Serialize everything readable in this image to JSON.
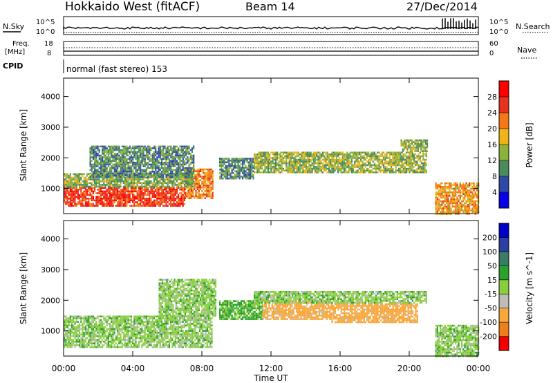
{
  "header": {
    "title": "Hokkaido West (fitACF)",
    "beam": "Beam 14",
    "date": "27/Dec/2014"
  },
  "strips": {
    "nsky_label": "N.Sky",
    "nsky_ticks": [
      "10^5",
      "10^0"
    ],
    "nsearch_label": "N.Search",
    "nsearch_ticks": [
      "10^5",
      "10^0"
    ],
    "freq_label_1": "Freq.",
    "freq_label_2": "[MHz]",
    "freq_ticks": [
      "18",
      "8"
    ],
    "nave_label": "Nave",
    "nave_ticks": [
      "60",
      "0"
    ],
    "cpid_label": "CPID",
    "cpid_text": "normal (fast stereo) 153"
  },
  "xaxis": {
    "label": "Time UT",
    "ticks": [
      "00:00",
      "04:00",
      "08:00",
      "12:00",
      "16:00",
      "20:00",
      "00:00"
    ]
  },
  "colors": {
    "power": [
      "#0a00e6",
      "#3049a8",
      "#4a8a5c",
      "#8cb23c",
      "#f0b419",
      "#f57814",
      "#e6321e",
      "#ff0000"
    ],
    "velocity": [
      "#f00000",
      "#ee7f1b",
      "#f9a73a",
      "#bdbdb5",
      "#89ce3d",
      "#2ca02c",
      "#3a7d62",
      "#2a3fa0",
      "#0000c8"
    ]
  },
  "chart_data": [
    {
      "type": "heatmap",
      "name": "power-panel",
      "xlabel": "",
      "ylabel": "Slant Range [km]",
      "ylim": [
        180,
        4600
      ],
      "yticks": [
        1000,
        2000,
        3000,
        4000
      ],
      "xlim_hours": [
        0,
        24
      ],
      "colorbar": {
        "label": "Power [dB]",
        "ticks": [
          4,
          8,
          12,
          16,
          20,
          24,
          28
        ],
        "range": [
          0,
          32
        ]
      },
      "regions": [
        {
          "t0": 0,
          "t1": 7.0,
          "r0": 450,
          "r1": 1050,
          "level": 26
        },
        {
          "t0": 7.0,
          "t1": 8.6,
          "r0": 700,
          "r1": 1650,
          "level": 22
        },
        {
          "t0": 0,
          "t1": 7.5,
          "r0": 1050,
          "r1": 1500,
          "level": 13
        },
        {
          "t0": 1.5,
          "t1": 7.5,
          "r0": 1400,
          "r1": 2400,
          "level": 10
        },
        {
          "t0": 9,
          "t1": 11,
          "r0": 1300,
          "r1": 2000,
          "level": 10
        },
        {
          "t0": 11,
          "t1": 21,
          "r0": 1500,
          "r1": 2200,
          "level": 14
        },
        {
          "t0": 19.5,
          "t1": 21,
          "r0": 2200,
          "r1": 2600,
          "level": 13
        },
        {
          "t0": 21.5,
          "t1": 24,
          "r0": 200,
          "r1": 1200,
          "level": 20
        }
      ]
    },
    {
      "type": "heatmap",
      "name": "velocity-panel",
      "xlabel": "Time UT",
      "ylabel": "Slant Range [km]",
      "ylim": [
        180,
        4600
      ],
      "yticks": [
        1000,
        2000,
        3000,
        4000
      ],
      "xlim_hours": [
        0,
        24
      ],
      "colorbar": {
        "label": "Velocity [m s^-1]",
        "ticks": [
          200,
          100,
          50,
          15,
          -15,
          -50,
          -100,
          -200
        ],
        "range": [
          -250,
          250
        ]
      },
      "regions": [
        {
          "t0": 0,
          "t1": 8.6,
          "r0": 450,
          "r1": 1500,
          "level": 0
        },
        {
          "t0": 5.5,
          "t1": 8.8,
          "r0": 1500,
          "r1": 2700,
          "level": 0
        },
        {
          "t0": 9,
          "t1": 11.5,
          "r0": 1400,
          "r1": 2000,
          "level": 20
        },
        {
          "t0": 11.5,
          "t1": 15.5,
          "r0": 1400,
          "r1": 2000,
          "level": -70
        },
        {
          "t0": 15.5,
          "t1": 20.5,
          "r0": 1300,
          "r1": 1900,
          "level": -70
        },
        {
          "t0": 11,
          "t1": 21,
          "r0": 1900,
          "r1": 2300,
          "level": 0
        },
        {
          "t0": 21.5,
          "t1": 24,
          "r0": 200,
          "r1": 1200,
          "level": 0
        }
      ]
    }
  ]
}
